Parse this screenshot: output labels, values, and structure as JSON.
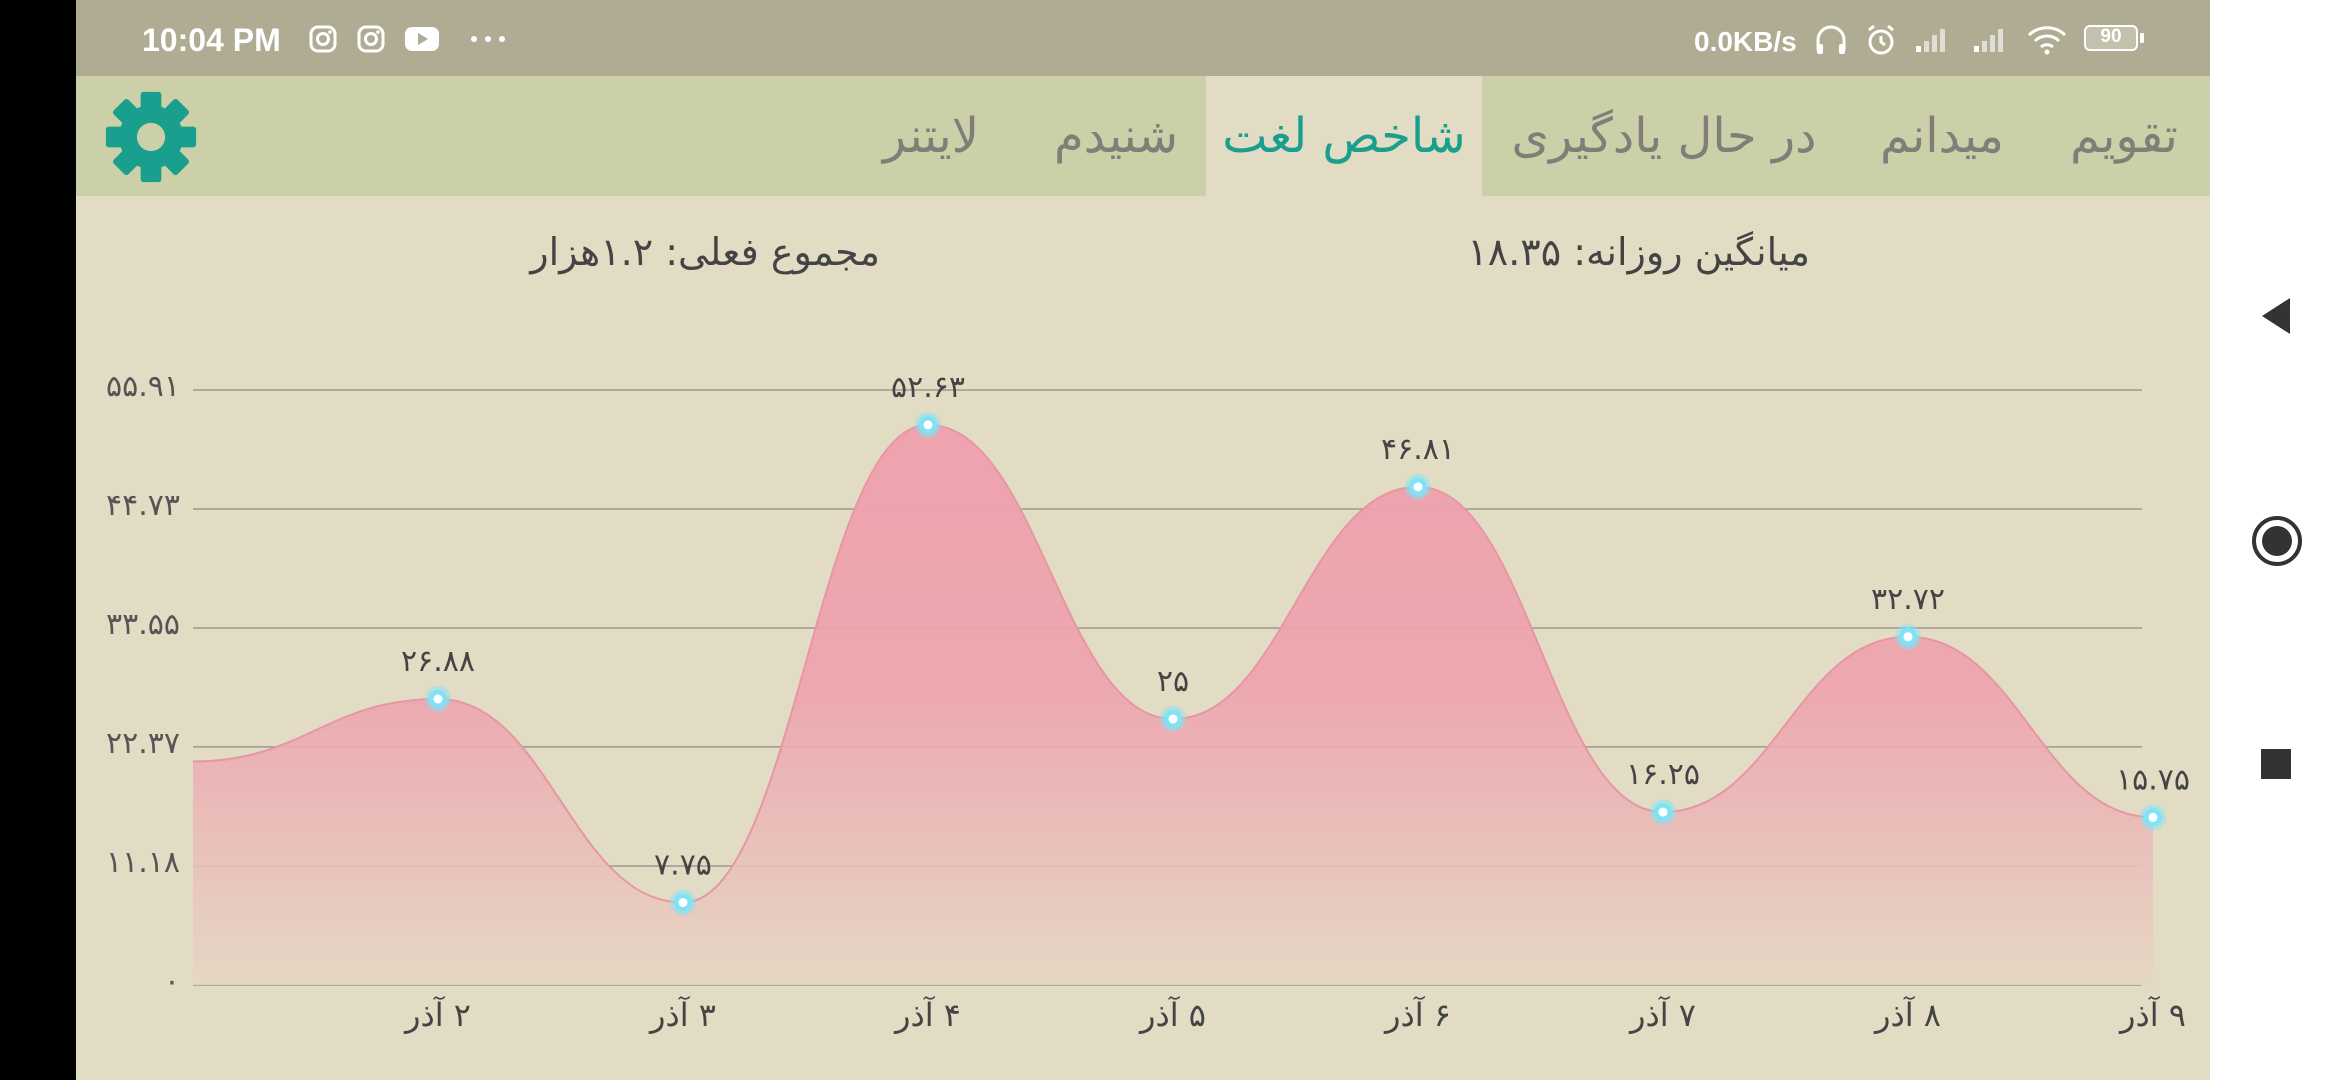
{
  "status_bar": {
    "time": "10:04 PM",
    "left_icons": [
      "instagram-icon",
      "instagram-icon",
      "youtube-icon",
      "more-dots-icon"
    ],
    "net_speed": "0.0KB/s",
    "right_icons": [
      "headphones-icon",
      "alarm-icon",
      "signal-icon",
      "signal-icon",
      "wifi-icon"
    ],
    "battery": "90"
  },
  "tabs": [
    {
      "label": "تقویم"
    },
    {
      "label": "میدانم"
    },
    {
      "label": "در حال یادگیری"
    },
    {
      "label": "شاخص لغت"
    },
    {
      "label": "شنیدم"
    },
    {
      "label": "لایتنر"
    }
  ],
  "active_tab": 3,
  "settings_icon": "gear-icon",
  "stats": {
    "daily_average": "میانگین روزانه: ۱۸.۳۵",
    "current_total": "مجموع فعلی: ۱.۲هزار"
  },
  "colors": {
    "accent": "#1a9e8d",
    "area_fill": "#eea2ad",
    "point": "#7fe3f5",
    "tab_bar": "#ccd0a8",
    "background": "#e2dcc5"
  },
  "chart_data": {
    "type": "area",
    "title": "",
    "categories": [
      "",
      "۲ آذر",
      "۳ آذر",
      "۴ آذر",
      "۵ آذر",
      "۶ آذر",
      "۷ آذر",
      "۸ آذر",
      "۹ آذر"
    ],
    "values": [
      21,
      26.88,
      7.75,
      52.63,
      25,
      46.81,
      16.25,
      32.72,
      15.75
    ],
    "labels": [
      "",
      "۲۶.۸۸",
      "۷.۷۵",
      "۵۲.۶۳",
      "۲۵",
      "۴۶.۸۱",
      "۱۶.۲۵",
      "۳۲.۷۲",
      "۱۵.۷۵"
    ],
    "y_ticks": [
      0,
      11.18,
      22.37,
      33.55,
      44.73,
      55.91
    ],
    "y_tick_labels": [
      "۰",
      "۱۱.۱۸",
      "۲۲.۳۷",
      "۳۳.۵۵",
      "۴۴.۷۳",
      "۵۵.۹۱"
    ],
    "ylim": [
      0,
      55.91
    ],
    "grid": true,
    "legend": "none"
  },
  "nav_icons": [
    "back-triangle-icon",
    "home-circle-icon",
    "recents-square-icon"
  ]
}
